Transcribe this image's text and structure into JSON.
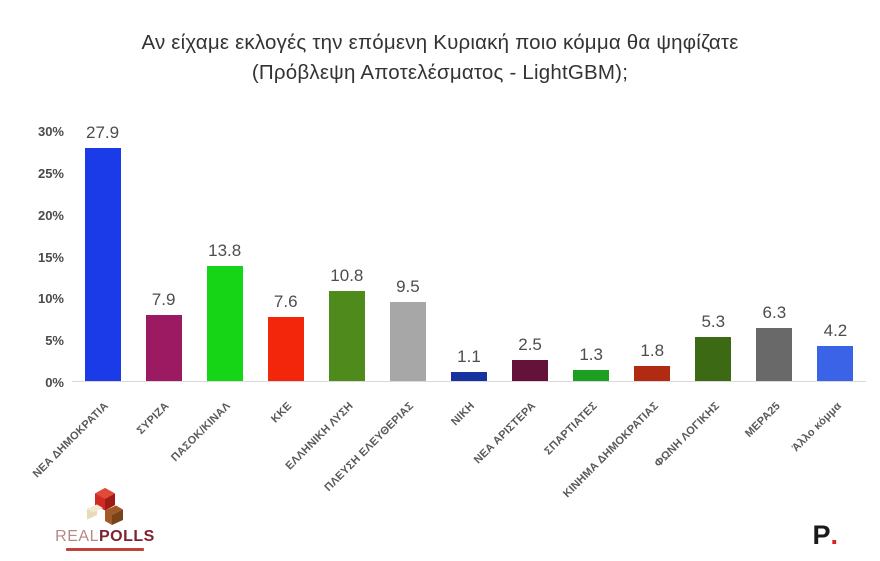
{
  "title": {
    "line1": "Αν είχαμε εκλογές την επόμενη Κυριακή ποιο κόμμα θα ψηφίζατε",
    "line2": "(Πρόβλεψη Αποτελέσματος - LightGBM);"
  },
  "chart_data": {
    "type": "bar",
    "title": "Αν είχαμε εκλογές την επόμενη Κυριακή ποιο κόμμα θα ψηφίζατε (Πρόβλεψη Αποτελέσματος - LightGBM);",
    "categories": [
      "ΝΕΑ ΔΗΜΟΚΡΑΤΙΑ",
      "ΣΥΡΙΖΑ",
      "ΠΑΣΟΚ/ΚΙΝΑΛ",
      "ΚΚΕ",
      "ΕΛΛΗΝΙΚΗ ΛΥΣΗ",
      "ΠΛΕΥΣΗ ΕΛΕΥΘΕΡΙΑΣ",
      "ΝΙΚΗ",
      "ΝΕΑ ΑΡΙΣΤΕΡΑ",
      "ΣΠΑΡΤΙΑΤΕΣ",
      "ΚΙΝΗΜΑ ΔΗΜΟΚΡΑΤΙΑΣ",
      "ΦΩΝΗ ΛΟΓΙΚΗΣ",
      "ΜΕΡΑ25",
      "Άλλο κόμμα"
    ],
    "values": [
      27.9,
      7.9,
      13.8,
      7.6,
      10.8,
      9.5,
      1.1,
      2.5,
      1.3,
      1.8,
      5.3,
      6.3,
      4.2
    ],
    "bar_colors": [
      "#1b3be8",
      "#9c1a62",
      "#16d416",
      "#f3260c",
      "#4e8a1c",
      "#a7a7a7",
      "#16339f",
      "#641239",
      "#1da021",
      "#b12a12",
      "#3c6914",
      "#696969",
      "#3a63e8"
    ],
    "xlabel": "",
    "ylabel": "",
    "ylim": [
      0,
      30
    ],
    "yticks": [
      "30%",
      "25%",
      "20%",
      "15%",
      "10%",
      "5%",
      "0%"
    ],
    "grid": false,
    "legend": false,
    "value_labels": true,
    "value_label_color": "#4d4d4d",
    "axis_line_color": "#d9d9d9"
  },
  "footer": {
    "realpolls_light": "REAL",
    "realpolls_bold": "POLLS",
    "p_letter": "P",
    "p_dot": "."
  }
}
